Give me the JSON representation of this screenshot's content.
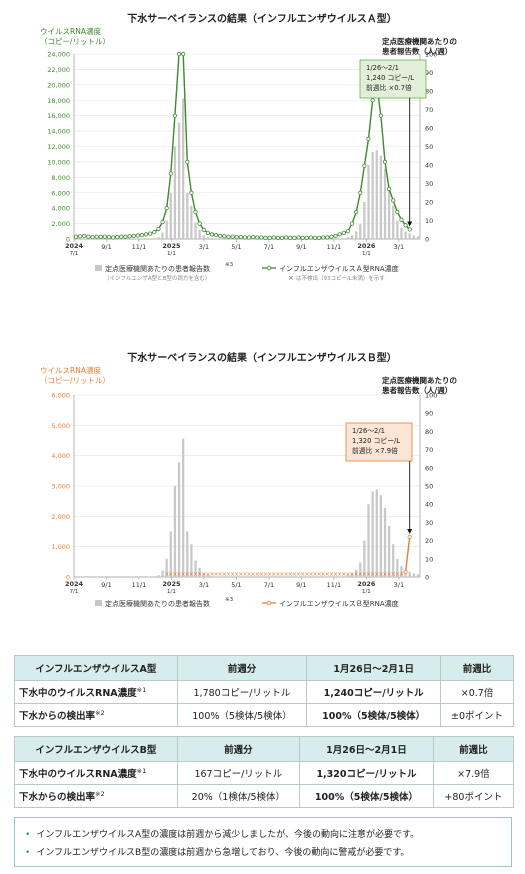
{
  "chart_data": [
    {
      "type": "bar+line",
      "title": "下水サーベイランスの結果（インフルエンザウイルスＡ型）",
      "ylabel_left": [
        "ウイルスRNA濃度",
        "（コピー/リットル）"
      ],
      "ylabel_right": [
        "定点医療機関あたりの",
        "患者報告数（人/週）"
      ],
      "ylim_left": [
        0,
        24000
      ],
      "ylim_right": [
        0,
        100
      ],
      "left_ticks": [
        "0",
        "2,000",
        "4,000",
        "6,000",
        "8,000",
        "10,000",
        "12,000",
        "14,000",
        "16,000",
        "18,000",
        "20,000",
        "22,000",
        "24,000"
      ],
      "right_ticks": [
        "0",
        "10",
        "20",
        "30",
        "40",
        "50",
        "60",
        "70",
        "80",
        "90",
        "100"
      ],
      "x_ticks": [
        [
          "2024",
          "7/1"
        ],
        [
          "9/1",
          ""
        ],
        [
          "11/1",
          ""
        ],
        [
          "2025",
          "1/1"
        ],
        [
          "3/1",
          ""
        ],
        [
          "5/1",
          ""
        ],
        [
          "7/1",
          ""
        ],
        [
          "9/1",
          ""
        ],
        [
          "11/1",
          ""
        ],
        [
          "2026",
          "1/1"
        ],
        [
          "3/1",
          ""
        ]
      ],
      "weeks": 84,
      "series": [
        {
          "name": "定点医療機関あたりの患者報告数",
          "kind": "bar",
          "axis": "right",
          "values": [
            0,
            0,
            0,
            0,
            0,
            0,
            0,
            0,
            0,
            0,
            0,
            0,
            0,
            0,
            0,
            0,
            0,
            0,
            0.2,
            0.4,
            1.0,
            3.5,
            10,
            25,
            50,
            63,
            76,
            25,
            18,
            9,
            5,
            2,
            1,
            0.5,
            0.2,
            0.1,
            0,
            0,
            0,
            0,
            0,
            0,
            0,
            0,
            0,
            0,
            0,
            0,
            0,
            0,
            0,
            0,
            0,
            0,
            0,
            0,
            0,
            0,
            0,
            0,
            0,
            0,
            0,
            0,
            0.2,
            0.4,
            1,
            2,
            4,
            8,
            20,
            40,
            47,
            48,
            45,
            38,
            28,
            18,
            10,
            6,
            4,
            3,
            2,
            1.5
          ]
        },
        {
          "name": "インフルエンザウイルスＡ型RNA濃度",
          "kind": "line",
          "axis": "left",
          "values": [
            300,
            350,
            400,
            300,
            250,
            300,
            280,
            300,
            250,
            200,
            250,
            300,
            300,
            350,
            400,
            450,
            500,
            600,
            700,
            900,
            1300,
            2200,
            4000,
            8500,
            16000,
            24000,
            24000,
            10000,
            6000,
            3500,
            2000,
            1200,
            800,
            600,
            500,
            400,
            350,
            300,
            300,
            250,
            250,
            200,
            200,
            250,
            200,
            200,
            150,
            150,
            200,
            150,
            150,
            200,
            150,
            150,
            200,
            150,
            150,
            200,
            150,
            150,
            200,
            200,
            300,
            400,
            600,
            800,
            1000,
            2000,
            3500,
            6000,
            9500,
            13000,
            18000,
            20000,
            16000,
            10000,
            6500,
            5000,
            3500,
            2500,
            1780,
            1240,
            null,
            null
          ]
        }
      ],
      "legend": [
        "定点医療機関あたりの患者報告数",
        "インフルエンザウイルスＡ型RNA濃度"
      ],
      "legend_notes": [
        "（インフルエンザA型とB型の両方を含む）",
        "は不検出（93コピー/L未満）を示す"
      ],
      "legend_note_mark": "※3",
      "undetected_mark": "×",
      "annotation": {
        "lines": [
          "1/26～2/1",
          "1,240 コピー/L",
          "前週比 ×0.7倍"
        ],
        "week": 81
      }
    },
    {
      "type": "bar+line",
      "title": "下水サーベイランスの結果（インフルエンザウイルスＢ型）",
      "ylabel_left": [
        "ウイルスRNA濃度",
        "（コピー/リットル）"
      ],
      "ylabel_right": [
        "定点医療機関あたりの",
        "患者報告数（人/週）"
      ],
      "ylim_left": [
        0,
        6000
      ],
      "ylim_right": [
        0,
        100
      ],
      "left_ticks": [
        "0",
        "1,000",
        "2,000",
        "3,000",
        "4,000",
        "5,000",
        "6,000"
      ],
      "right_ticks": [
        "0",
        "10",
        "20",
        "30",
        "40",
        "50",
        "60",
        "70",
        "80",
        "90",
        "100"
      ],
      "x_ticks": [
        [
          "2024",
          "7/1"
        ],
        [
          "9/1",
          ""
        ],
        [
          "11/1",
          ""
        ],
        [
          "2025",
          "1/1"
        ],
        [
          "3/1",
          ""
        ],
        [
          "5/1",
          ""
        ],
        [
          "7/1",
          ""
        ],
        [
          "9/1",
          ""
        ],
        [
          "11/1",
          ""
        ],
        [
          "2026",
          "1/1"
        ],
        [
          "3/1",
          ""
        ]
      ],
      "weeks": 84,
      "series": [
        {
          "name": "定点医療機関あたりの患者報告数",
          "kind": "bar",
          "axis": "right",
          "values": [
            0,
            0,
            0,
            0,
            0,
            0,
            0,
            0,
            0,
            0,
            0,
            0,
            0,
            0,
            0,
            0,
            0,
            0,
            0.2,
            0.4,
            1.0,
            3.5,
            10,
            25,
            50,
            63,
            76,
            25,
            18,
            9,
            5,
            2,
            1,
            0.5,
            0.2,
            0.1,
            0,
            0,
            0,
            0,
            0,
            0,
            0,
            0,
            0,
            0,
            0,
            0,
            0,
            0,
            0,
            0,
            0,
            0,
            0,
            0,
            0,
            0,
            0,
            0,
            0,
            0,
            0,
            0,
            0.2,
            0.4,
            1,
            2,
            4,
            8,
            20,
            40,
            47,
            48,
            45,
            38,
            28,
            18,
            10,
            6,
            4,
            3,
            2,
            1.5
          ]
        },
        {
          "name": "インフルエンザウイルスＢ型RNA濃度",
          "kind": "line",
          "axis": "left",
          "values": [
            null,
            null,
            null,
            null,
            null,
            null,
            null,
            null,
            null,
            null,
            null,
            null,
            null,
            null,
            null,
            null,
            null,
            null,
            null,
            null,
            null,
            null,
            null,
            null,
            null,
            null,
            null,
            null,
            null,
            null,
            null,
            null,
            null,
            null,
            null,
            null,
            null,
            null,
            null,
            null,
            null,
            null,
            null,
            null,
            null,
            null,
            null,
            null,
            null,
            null,
            null,
            null,
            null,
            null,
            null,
            null,
            null,
            null,
            null,
            null,
            null,
            null,
            null,
            null,
            null,
            null,
            null,
            null,
            null,
            null,
            null,
            null,
            null,
            null,
            null,
            null,
            null,
            null,
            null,
            null,
            167,
            1320,
            null,
            null
          ],
          "undetected_weeks": [
            22,
            23,
            24,
            25,
            26,
            27,
            28,
            29,
            30,
            31,
            32,
            33,
            34,
            35,
            36,
            37,
            38,
            39,
            40,
            41,
            42,
            43,
            44,
            45,
            46,
            47,
            48,
            49,
            50,
            51,
            52,
            53,
            54,
            55,
            56,
            57,
            58,
            59,
            60,
            61,
            62,
            63,
            64,
            65,
            66,
            67,
            68,
            69,
            70,
            71,
            72,
            73,
            74,
            75,
            76,
            77,
            78,
            79
          ]
        }
      ],
      "legend": [
        "定点医療機関あたりの患者報告数",
        "インフルエンザウイルスＢ型RNA濃度"
      ],
      "legend_notes": [
        "（インフルエンザA型とB型の両方を含む）",
        "は不検出（93コピー/L未満）を示す"
      ],
      "legend_note_mark": "※3",
      "undetected_mark": "×",
      "annotation": {
        "lines": [
          "1/26～2/1",
          "1,320 コピー/L",
          "前週比 ×7.9倍"
        ],
        "week": 81
      }
    }
  ],
  "colors": {
    "bars": "#c8c8c8",
    "lineA": "#3d8a2e",
    "lineB": "#ed7d31",
    "annotA_bg": "#e2f0d9",
    "annotA_border": "#70ad47",
    "annotB_bg": "#fbe5d6",
    "annotB_border": "#ed7d31",
    "table_header": "#d7ecec"
  },
  "tables": {
    "a": {
      "header": [
        "インフルエンザウイルスA型",
        "前週分",
        "1月26日～2月1日",
        "前週比"
      ],
      "rows": [
        {
          "label": "下水中のウイルスRNA濃度",
          "note": "※1",
          "prev": "1,780コピー/リットル",
          "curr": "1,240コピー/リットル",
          "ratio": "×0.7倍"
        },
        {
          "label": "下水からの検出率",
          "note": "※2",
          "prev": "100%（5検体/5検体）",
          "curr": "100%（5検体/5検体）",
          "ratio": "±0ポイント"
        }
      ]
    },
    "b": {
      "header": [
        "インフルエンザウイルスB型",
        "前週分",
        "1月26日～2月1日",
        "前週比"
      ],
      "rows": [
        {
          "label": "下水中のウイルスRNA濃度",
          "note": "※1",
          "prev": "167コピー/リットル",
          "curr": "1,320コピー/リットル",
          "ratio": "×7.9倍"
        },
        {
          "label": "下水からの検出率",
          "note": "※2",
          "prev": "20%（1検体/5検体）",
          "curr": "100%（5検体/5検体）",
          "ratio": "+80ポイント"
        }
      ]
    }
  },
  "notes": [
    "インフルエンザウイルスA型の濃度は前週から減少しましたが、今後の動向に注意が必要です。",
    "インフルエンザウイルスB型の濃度は前週から急増しており、今後の動向に警戒が必要です。"
  ]
}
